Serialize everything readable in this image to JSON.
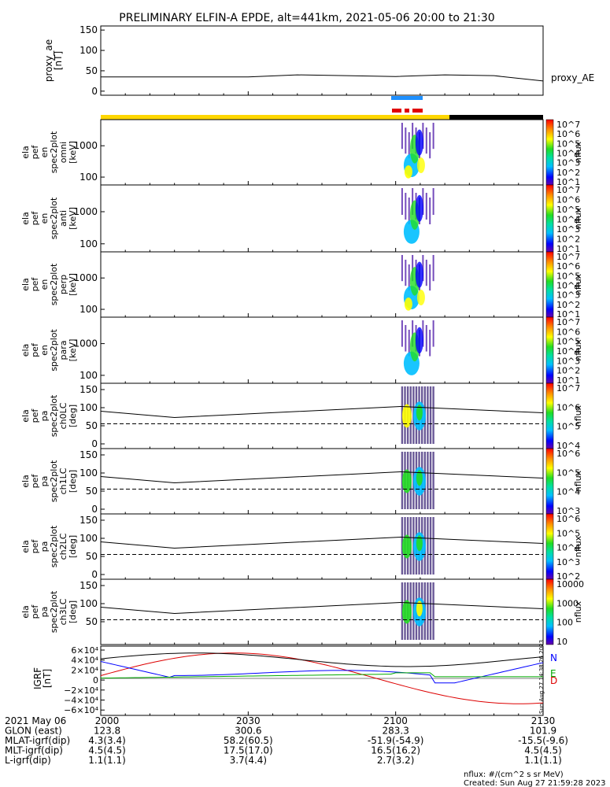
{
  "title": "PRELIMINARY ELFIN-A EPDE, alt=441km, 2021-05-06 20:00 to 21:30",
  "colors": {
    "orbit_bar_sun": "#ffd700",
    "orbit_bar_shadow": "#000000",
    "sci_zone_blue": "#1e90ff",
    "sci_zone_red": "#e00000",
    "igrf_x": "#000000",
    "igrf_y": "#0000ff",
    "igrf_z": "#dd0000",
    "igrf_tot": "#00aa00"
  },
  "chart_data": [
    {
      "type": "line",
      "name": "proxy_ae",
      "ylabel": "proxy_ae\n[nT]",
      "yticks": [
        "150",
        "100",
        "50",
        "0"
      ],
      "ylim": [
        -10,
        160
      ],
      "x": [
        0,
        10,
        20,
        30,
        40,
        50,
        60,
        70,
        80,
        90
      ],
      "values": [
        35,
        35,
        35,
        35,
        40,
        38,
        36,
        40,
        38,
        25
      ],
      "series_label": "proxy_AE"
    },
    {
      "type": "heatmap",
      "ylabel": "ela\npef\nen\nspec2plot\nomni\n[keV]",
      "yticks": [
        "1000",
        "100"
      ],
      "zticks": [
        "10^7",
        "10^6",
        "10^5",
        "10^4",
        "10^3",
        "10^2",
        "10^1"
      ],
      "zlabel": "nflux",
      "active_x": [
        61,
        68
      ]
    },
    {
      "type": "heatmap",
      "ylabel": "ela\npef\nen\nspec2plot\nanti\n[keV]",
      "yticks": [
        "1000",
        "100"
      ],
      "zticks": [
        "10^7",
        "10^6",
        "10^5",
        "10^4",
        "10^3",
        "10^2",
        "10^1"
      ],
      "zlabel": "nflux",
      "active_x": [
        61,
        68
      ]
    },
    {
      "type": "heatmap",
      "ylabel": "ela\npef\nen\nspec2plot\nperp\n[keV]",
      "yticks": [
        "1000",
        "100"
      ],
      "zticks": [
        "10^7",
        "10^6",
        "10^5",
        "10^4",
        "10^3",
        "10^2",
        "10^1"
      ],
      "zlabel": "nflux",
      "active_x": [
        61,
        68
      ]
    },
    {
      "type": "heatmap",
      "ylabel": "ela\npef\nen\nspec2plot\npara\n[keV]",
      "yticks": [
        "1000",
        "100"
      ],
      "zticks": [
        "10^7",
        "10^6",
        "10^5",
        "10^4",
        "10^3",
        "10^2",
        "10^1"
      ],
      "zlabel": "nflux",
      "active_x": [
        61,
        68
      ]
    },
    {
      "type": "heatmap",
      "ylabel": "ela\npef\npa\nspec2plot\nch0LC\n[deg]",
      "yticks": [
        "150",
        "100",
        "50",
        "0"
      ],
      "zticks": [
        "10^7",
        "10^6",
        "10^5",
        "10^4"
      ],
      "zlabel": "nflux",
      "active_x": [
        61,
        68
      ]
    },
    {
      "type": "heatmap",
      "ylabel": "ela\npef\npa\nspec2plot\nch1LC\n[deg]",
      "yticks": [
        "150",
        "100",
        "50",
        "0"
      ],
      "zticks": [
        "10^6",
        "10^5",
        "10^4",
        "10^3"
      ],
      "zlabel": "nflux",
      "active_x": [
        61,
        68
      ]
    },
    {
      "type": "heatmap",
      "ylabel": "ela\npef\npa\nspec2plot\nch2LC\n[deg]",
      "yticks": [
        "150",
        "100",
        "50",
        "0"
      ],
      "zticks": [
        "10^6",
        "10^5",
        "10^4",
        "10^3",
        "10^2"
      ],
      "zlabel": "nflux",
      "active_x": [
        61,
        68
      ]
    },
    {
      "type": "heatmap",
      "ylabel": "ela\npef\npa\nspec2plot\nch3LC\n[deg]",
      "yticks": [
        "150",
        "100",
        "50"
      ],
      "zticks": [
        "10000",
        "1000",
        "100",
        "10"
      ],
      "zlabel": "nflux",
      "active_x": [
        61,
        68
      ]
    },
    {
      "type": "line",
      "ylabel": "IGRF\n[nT]",
      "yticks": [
        "6×10⁴",
        "4×10⁴",
        "2×10⁴",
        "0",
        "−2×10⁴",
        "−4×10⁴",
        "−6×10⁴"
      ],
      "legend": [
        "N",
        "E",
        "D"
      ],
      "watermark": "Sun Aug 27 14:38:26 2023"
    }
  ],
  "footer": {
    "rows": [
      {
        "label": "2021 May 06",
        "vals": [
          "2000",
          "2030",
          "2100",
          "2130"
        ]
      },
      {
        "label": "GLON (east)",
        "vals": [
          "123.8",
          "300.6",
          "283.3",
          "101.9"
        ]
      },
      {
        "label": "MLAT-igrf(dip)",
        "vals": [
          "4.3(3.4)",
          "58.2(60.5)",
          "-51.9(-54.9)",
          "-15.5(-9.6)"
        ]
      },
      {
        "label": "MLT-igrf(dip)",
        "vals": [
          "4.5(4.5)",
          "17.5(17.0)",
          "16.5(16.2)",
          "4.5(4.5)"
        ]
      },
      {
        "label": "L-igrf(dip)",
        "vals": [
          "1.1(1.1)",
          "3.7(4.4)",
          "2.7(3.2)",
          "1.1(1.1)"
        ]
      }
    ],
    "nflux_note": "nflux: #/(cm^2 s sr MeV)",
    "created": "Created: Sun Aug 27 21:59:28 2023"
  }
}
